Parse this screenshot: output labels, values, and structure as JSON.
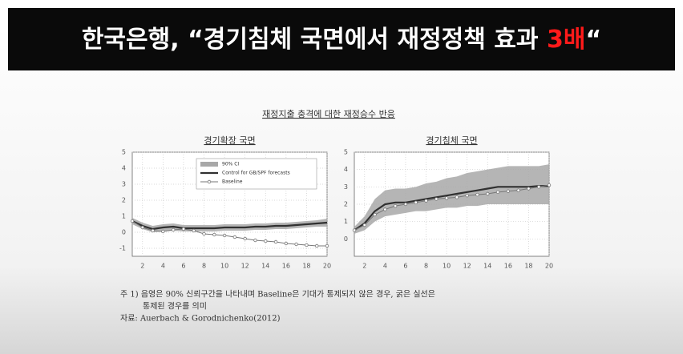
{
  "headline": {
    "text": "한국은행, “경기침체 국면에서 재정정책 효과 ",
    "highlight": "3배",
    "closing": "“"
  },
  "figure_title": "재정지출 충격에 대한 재정승수 반응",
  "notes": [
    "주 1) 음영은 90% 신뢰구간을 나타내며 Baseline은 기대가 통제되지 않은 경우, 굵은 실선은",
    "통제된 경우를 의미",
    "자료: Auerbach & Gorodnichenko(2012)"
  ],
  "chart_data": [
    {
      "type": "line",
      "title": "경기확장 국면",
      "x": [
        1,
        2,
        3,
        4,
        5,
        6,
        7,
        8,
        9,
        10,
        11,
        12,
        13,
        14,
        15,
        16,
        17,
        18,
        19,
        20
      ],
      "xlim": [
        1,
        20
      ],
      "xticks": [
        2,
        4,
        6,
        8,
        10,
        12,
        14,
        16,
        18,
        20
      ],
      "ylim": [
        -1.5,
        5
      ],
      "yticks": [
        -1,
        0,
        1,
        2,
        3,
        4,
        5
      ],
      "grid": true,
      "legend": "top",
      "series": [
        {
          "name": "90% CI",
          "color": "#a8a8a8",
          "band": true,
          "values": [
            0.9,
            0.6,
            0.4,
            0.5,
            0.55,
            0.45,
            0.45,
            0.45,
            0.45,
            0.5,
            0.5,
            0.5,
            0.55,
            0.55,
            0.6,
            0.6,
            0.65,
            0.7,
            0.75,
            0.85
          ],
          "lower": [
            0.5,
            0.2,
            0,
            0.05,
            0.1,
            0.05,
            0.05,
            0.05,
            0.05,
            0.1,
            0.1,
            0.1,
            0.15,
            0.15,
            0.2,
            0.2,
            0.25,
            0.3,
            0.35,
            0.35
          ]
        },
        {
          "name": "Control for GB/SPF forecasts",
          "color": "#303030",
          "values": [
            0.7,
            0.4,
            0.2,
            0.3,
            0.35,
            0.25,
            0.25,
            0.25,
            0.25,
            0.3,
            0.3,
            0.3,
            0.35,
            0.35,
            0.4,
            0.4,
            0.45,
            0.5,
            0.55,
            0.6
          ]
        },
        {
          "name": "Baseline",
          "color": "#777777",
          "markers": true,
          "values": [
            0.7,
            0.3,
            0.1,
            0.05,
            0.15,
            0.2,
            0.1,
            -0.1,
            -0.15,
            -0.2,
            -0.3,
            -0.4,
            -0.5,
            -0.55,
            -0.6,
            -0.7,
            -0.75,
            -0.8,
            -0.85,
            -0.85
          ]
        }
      ]
    },
    {
      "type": "line",
      "title": "경기침체 국면",
      "x": [
        1,
        2,
        3,
        4,
        5,
        6,
        7,
        8,
        9,
        10,
        11,
        12,
        13,
        14,
        15,
        16,
        17,
        18,
        19,
        20
      ],
      "xlim": [
        1,
        20
      ],
      "xticks": [
        2,
        4,
        6,
        8,
        10,
        12,
        14,
        16,
        18,
        20
      ],
      "ylim": [
        -1,
        5
      ],
      "yticks": [
        0,
        1,
        2,
        3,
        4,
        5
      ],
      "grid": true,
      "series": [
        {
          "color": "#a8a8a8",
          "band": true,
          "values": [
            0.7,
            1.3,
            2.3,
            2.8,
            2.9,
            2.9,
            3.0,
            3.2,
            3.3,
            3.5,
            3.6,
            3.8,
            3.9,
            4.0,
            4.1,
            4.2,
            4.2,
            4.2,
            4.2,
            4.3
          ],
          "lower": [
            0.3,
            0.5,
            1.0,
            1.3,
            1.4,
            1.5,
            1.6,
            1.6,
            1.7,
            1.8,
            1.8,
            1.9,
            1.9,
            2.0,
            2.0,
            2.0,
            2.0,
            2.0,
            2.0,
            2.0
          ]
        },
        {
          "color": "#303030",
          "values": [
            0.5,
            0.9,
            1.6,
            2.0,
            2.1,
            2.1,
            2.2,
            2.3,
            2.4,
            2.5,
            2.6,
            2.7,
            2.8,
            2.9,
            3.0,
            3.0,
            3.0,
            3.0,
            3.05,
            3.05
          ]
        },
        {
          "color": "#777777",
          "markers": true,
          "values": [
            0.5,
            0.8,
            1.4,
            1.7,
            1.9,
            2.0,
            2.1,
            2.2,
            2.3,
            2.35,
            2.4,
            2.5,
            2.55,
            2.6,
            2.7,
            2.75,
            2.8,
            2.9,
            3.0,
            3.1
          ]
        }
      ]
    }
  ]
}
